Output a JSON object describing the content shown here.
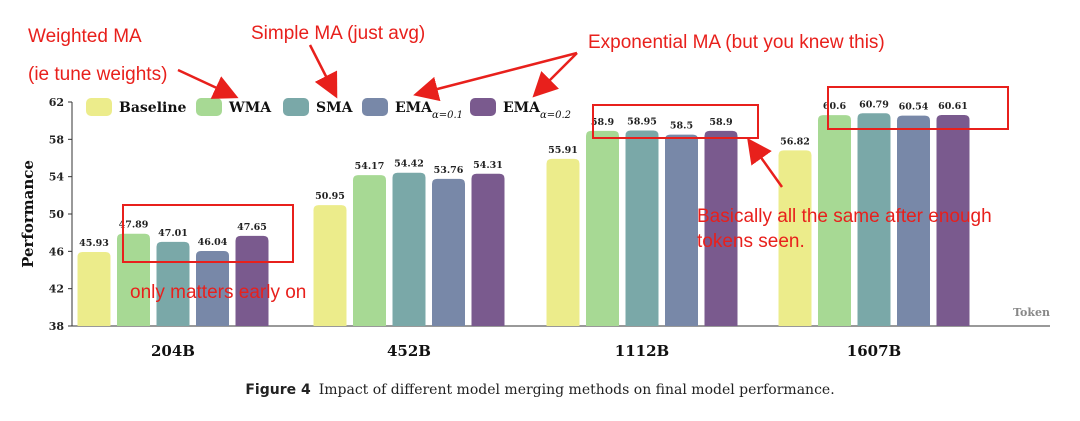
{
  "chart_data": {
    "type": "bar",
    "categories": [
      "204B",
      "452B",
      "1112B",
      "1607B"
    ],
    "series": [
      {
        "name": "Baseline",
        "color": "#ecec8b",
        "values": [
          45.93,
          50.95,
          55.91,
          56.82
        ]
      },
      {
        "name": "WMA",
        "color": "#a7d994",
        "values": [
          47.89,
          54.17,
          58.9,
          60.6
        ]
      },
      {
        "name": "SMA",
        "color": "#7aa8a8",
        "values": [
          47.01,
          54.42,
          58.95,
          60.79
        ]
      },
      {
        "name": "EMA",
        "subscript": "α=0.1",
        "color": "#7888a8",
        "values": [
          46.04,
          53.76,
          58.5,
          60.54
        ]
      },
      {
        "name": "EMA",
        "subscript": "α=0.2",
        "color": "#7a5a8e",
        "values": [
          47.65,
          54.31,
          58.9,
          60.61
        ]
      }
    ],
    "value_labels": [
      [
        "45.93",
        "50.95",
        "55.91",
        "56.82"
      ],
      [
        "47.89",
        "54.17",
        "58.9",
        "60.6"
      ],
      [
        "47.01",
        "54.42",
        "58.95",
        "60.79"
      ],
      [
        "46.04",
        "53.76",
        "58.5",
        "60.54"
      ],
      [
        "47.65",
        "54.31",
        "58.9",
        "60.61"
      ]
    ],
    "ylabel": "Performance",
    "xlabel": "Token",
    "ylim": [
      38,
      62
    ],
    "yticks": [
      38,
      42,
      46,
      50,
      54,
      58,
      62
    ],
    "grid": false,
    "legend": "top"
  },
  "annotations": {
    "weighted_ma": "Weighted MA",
    "tune_weights": "(ie tune weights)",
    "simple_ma": "Simple MA (just avg)",
    "exponential_ma": "Exponential MA (but you knew this)",
    "early": "only matters early on",
    "same_line1": "Basically all the same after enough",
    "same_line2": "tokens seen.",
    "color": "#e8201c"
  },
  "caption": {
    "figure": "Figure 4",
    "text": "Impact of different model merging methods on final model performance."
  }
}
